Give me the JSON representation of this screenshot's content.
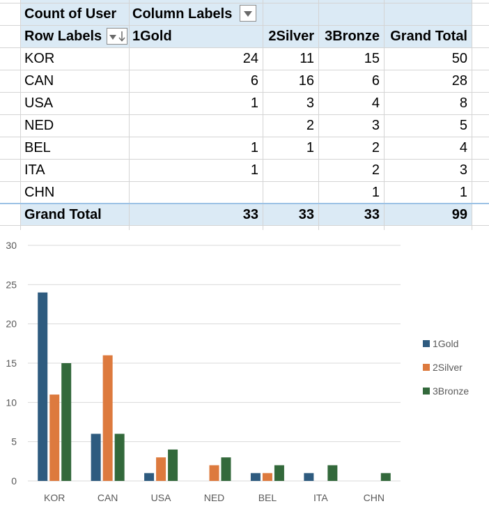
{
  "pivot": {
    "corner_label": "Count of User",
    "column_labels_label": "Column Labels",
    "row_labels_label": "Row Labels",
    "columns": [
      "1Gold",
      "2Silver",
      "3Bronze",
      "Grand Total"
    ],
    "rows": [
      {
        "label": "KOR",
        "values": [
          "24",
          "11",
          "15",
          "50"
        ]
      },
      {
        "label": "CAN",
        "values": [
          "6",
          "16",
          "6",
          "28"
        ]
      },
      {
        "label": "USA",
        "values": [
          "1",
          "3",
          "4",
          "8"
        ]
      },
      {
        "label": "NED",
        "values": [
          "",
          "2",
          "3",
          "5"
        ]
      },
      {
        "label": "BEL",
        "values": [
          "1",
          "1",
          "2",
          "4"
        ]
      },
      {
        "label": "ITA",
        "values": [
          "1",
          "",
          "2",
          "3"
        ]
      },
      {
        "label": "CHN",
        "values": [
          "",
          "",
          "1",
          "1"
        ]
      }
    ],
    "total": {
      "label": "Grand Total",
      "values": [
        "33",
        "33",
        "33",
        "99"
      ]
    },
    "colors": {
      "header_band": "#dbeaf5",
      "total_line": "#9cc2e5"
    }
  },
  "chart_data": {
    "type": "bar",
    "categories": [
      "KOR",
      "CAN",
      "USA",
      "NED",
      "BEL",
      "ITA",
      "CHN"
    ],
    "series": [
      {
        "name": "1Gold",
        "color": "#2e5b7f",
        "values": [
          24,
          6,
          1,
          0,
          1,
          1,
          0
        ]
      },
      {
        "name": "2Silver",
        "color": "#dd7a3e",
        "values": [
          11,
          16,
          3,
          2,
          1,
          0,
          0
        ]
      },
      {
        "name": "3Bronze",
        "color": "#33693b",
        "values": [
          15,
          6,
          4,
          3,
          2,
          2,
          1
        ]
      }
    ],
    "ylim": [
      0,
      30
    ],
    "yticks": [
      0,
      5,
      10,
      15,
      20,
      25,
      30
    ],
    "grid": true,
    "legend": "right"
  }
}
